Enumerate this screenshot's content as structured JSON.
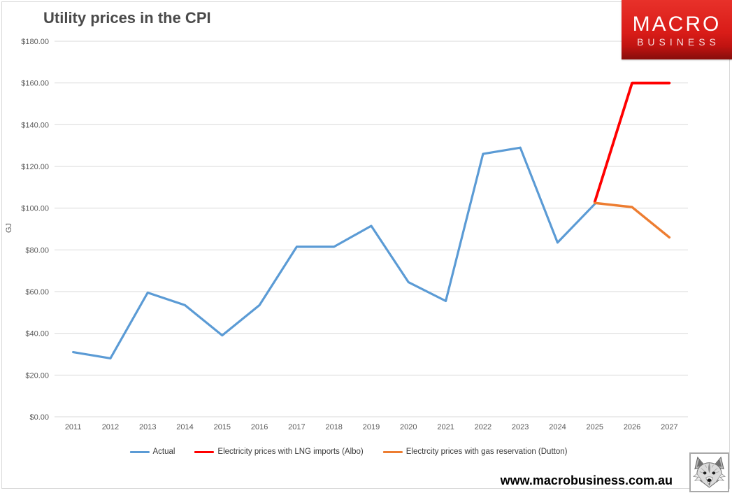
{
  "title": "Utility prices in the CPI",
  "ylabel": "GJ",
  "website": "www.macrobusiness.com.au",
  "logo": {
    "line1": "MACRO",
    "line2": "BUSINESS"
  },
  "colors": {
    "actual_blue": "#5B9BD5",
    "albo_red": "#FF0000",
    "dutton_orange": "#ED7D31",
    "gridline": "#D9D9D9",
    "axis_text": "#595959",
    "logo_red": "#D91C18"
  },
  "chart_data": {
    "type": "line",
    "x": [
      "2011",
      "2012",
      "2013",
      "2014",
      "2015",
      "2016",
      "2017",
      "2018",
      "2019",
      "2020",
      "2021",
      "2022",
      "2023",
      "2024",
      "2025",
      "2026",
      "2027"
    ],
    "series": [
      {
        "name": "Actual",
        "color": "#5B9BD5",
        "values": [
          31,
          28,
          59.5,
          53.5,
          39,
          53.5,
          81.5,
          81.5,
          91.5,
          64.5,
          55.5,
          126,
          129,
          83.5,
          102,
          null,
          null
        ]
      },
      {
        "name": "Electricity prices with LNG imports (Albo)",
        "color": "#FF0000",
        "values": [
          null,
          null,
          null,
          null,
          null,
          null,
          null,
          null,
          null,
          null,
          null,
          null,
          null,
          null,
          103,
          160,
          160
        ]
      },
      {
        "name": "Electrcity prices with gas reservation (Dutton)",
        "color": "#ED7D31",
        "values": [
          null,
          null,
          null,
          null,
          null,
          null,
          null,
          null,
          null,
          null,
          null,
          null,
          null,
          null,
          102.5,
          100.5,
          86
        ]
      }
    ],
    "title": "Utility prices in the CPI",
    "xlabel": "",
    "ylabel": "GJ",
    "ylim": [
      0,
      180
    ],
    "ytick_step": 20,
    "yticks": [
      "$0.00",
      "$20.00",
      "$40.00",
      "$60.00",
      "$80.00",
      "$100.00",
      "$120.00",
      "$140.00",
      "$160.00",
      "$180.00"
    ],
    "grid": true,
    "legend_position": "bottom"
  }
}
